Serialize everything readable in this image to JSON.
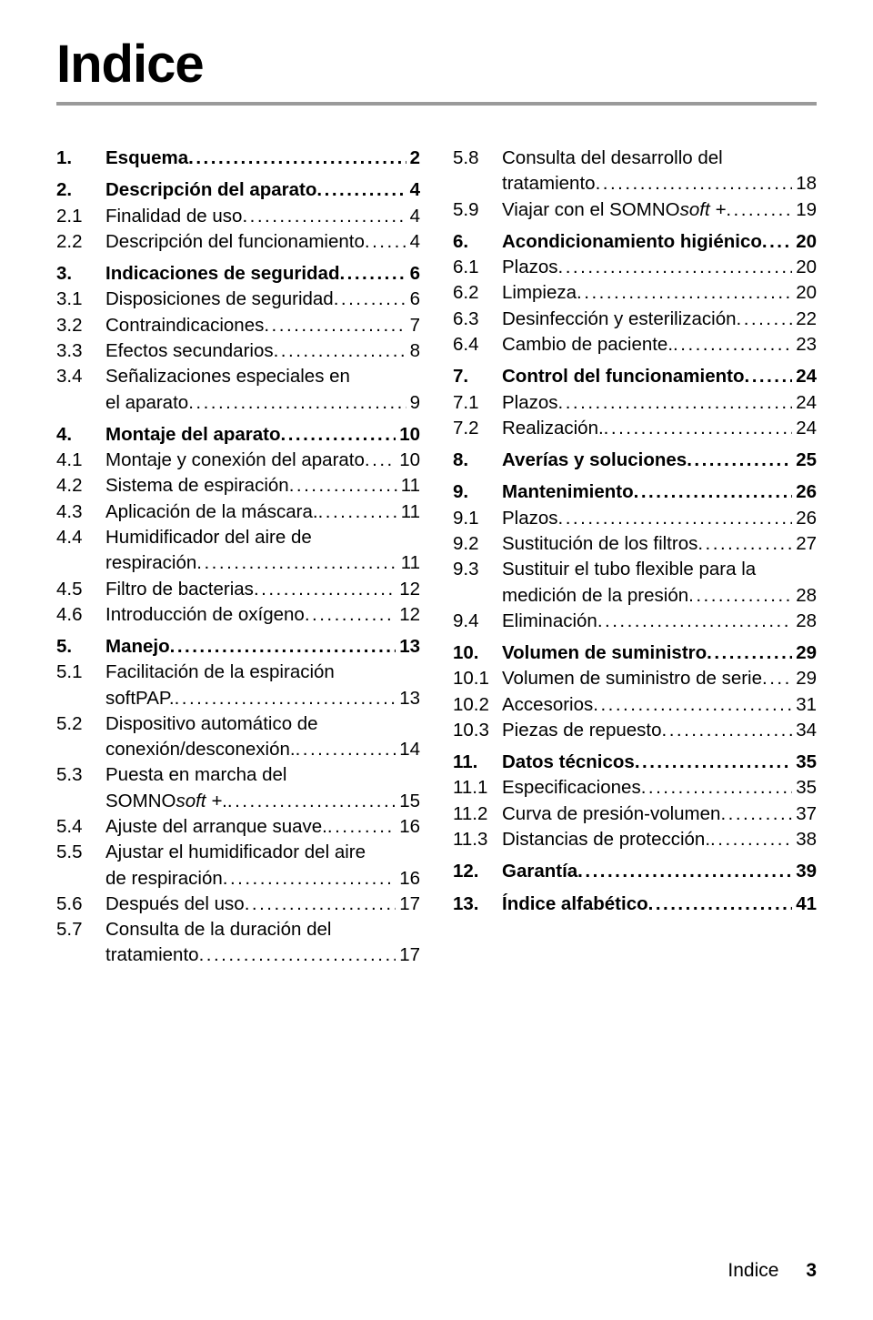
{
  "title": "Indice",
  "footer": {
    "label": "Indice",
    "page": "3"
  },
  "leader_char": ".",
  "leader_repeat": 80,
  "left": [
    {
      "num": "1.",
      "label": "Esquema",
      "page": "2",
      "bold": true,
      "gap": false
    },
    {
      "num": "2.",
      "label": "Descripción del aparato",
      "page": "4",
      "bold": true,
      "gap": true
    },
    {
      "num": "2.1",
      "label": "Finalidad de uso",
      "page": "4",
      "bold": false,
      "gap": false
    },
    {
      "num": "2.2",
      "label": "Descripción del funcionamiento",
      "page": "4",
      "bold": false,
      "gap": false
    },
    {
      "num": "3.",
      "label": "Indicaciones de seguridad",
      "page": "6",
      "bold": true,
      "gap": true
    },
    {
      "num": "3.1",
      "label": "Disposiciones de seguridad",
      "page": "6",
      "bold": false,
      "gap": false
    },
    {
      "num": "3.2",
      "label": "Contraindicaciones",
      "page": "7",
      "bold": false,
      "gap": false
    },
    {
      "num": "3.3",
      "label": "Efectos secundarios",
      "page": "8",
      "bold": false,
      "gap": false
    },
    {
      "num": "3.4",
      "label": "Señalizaciones especiales en el aparato",
      "page": "9",
      "bold": false,
      "gap": false,
      "wrap": "Señalizaciones especiales en",
      "wrap2": "el aparato"
    },
    {
      "num": "4.",
      "label": "Montaje del aparato",
      "page": "10",
      "bold": true,
      "gap": true
    },
    {
      "num": "4.1",
      "label": "Montaje y conexión del aparato",
      "page": "10",
      "bold": false,
      "gap": false
    },
    {
      "num": "4.2",
      "label": "Sistema de espiración",
      "page": "11",
      "bold": false,
      "gap": false
    },
    {
      "num": "4.3",
      "label": "Aplicación de la máscara.",
      "page": "11",
      "bold": false,
      "gap": false
    },
    {
      "num": "4.4",
      "label": "Humidificador del aire de respiración",
      "page": "11",
      "bold": false,
      "gap": false,
      "wrap": "Humidificador del aire de",
      "wrap2": "respiración"
    },
    {
      "num": "4.5",
      "label": "Filtro de bacterias",
      "page": "12",
      "bold": false,
      "gap": false
    },
    {
      "num": "4.6",
      "label": "Introducción de oxígeno",
      "page": "12",
      "bold": false,
      "gap": false
    },
    {
      "num": "5.",
      "label": "Manejo",
      "page": "13",
      "bold": true,
      "gap": true
    },
    {
      "num": "5.1",
      "label": "Facilitación de la espiración softPAP.",
      "page": "13",
      "bold": false,
      "gap": false,
      "wrap": "Facilitación de la espiración",
      "wrap2": "softPAP."
    },
    {
      "num": "5.2",
      "label": "Dispositivo automático de conexión/desconexión.",
      "page": "14",
      "bold": false,
      "gap": false,
      "wrap": "Dispositivo automático de",
      "wrap2": "conexión/desconexión."
    },
    {
      "num": "5.3",
      "label": "Puesta en marcha del SOMNOsoft +.",
      "page": "15",
      "bold": false,
      "gap": false,
      "wrap": "Puesta en marcha del",
      "wrap2": "SOMNO<i>soft +</i>."
    },
    {
      "num": "5.4",
      "label": "Ajuste del arranque suave.",
      "page": "16",
      "bold": false,
      "gap": false
    },
    {
      "num": "5.5",
      "label": "Ajustar el humidificador del aire de respiración",
      "page": "16",
      "bold": false,
      "gap": false,
      "wrap": "Ajustar el humidificador del aire",
      "wrap2": "de respiración"
    },
    {
      "num": "5.6",
      "label": "Después del uso",
      "page": "17",
      "bold": false,
      "gap": false
    },
    {
      "num": "5.7",
      "label": "Consulta de la duración del tratamiento",
      "page": "17",
      "bold": false,
      "gap": false,
      "wrap": "Consulta de la duración del",
      "wrap2": "tratamiento"
    }
  ],
  "right": [
    {
      "num": "5.8",
      "label": "Consulta del desarrollo del tratamiento",
      "page": "18",
      "bold": false,
      "gap": false,
      "wrap": "Consulta del desarrollo del",
      "wrap2": "tratamiento"
    },
    {
      "num": "5.9",
      "label": "Viajar con el SOMNO<i>soft +</i>",
      "page": "19",
      "bold": false,
      "gap": false,
      "html": true
    },
    {
      "num": "6.",
      "label": "Acondicionamiento higiénico",
      "page": "20",
      "bold": true,
      "gap": true
    },
    {
      "num": "6.1",
      "label": "Plazos",
      "page": "20",
      "bold": false,
      "gap": false
    },
    {
      "num": "6.2",
      "label": "Limpieza",
      "page": "20",
      "bold": false,
      "gap": false
    },
    {
      "num": "6.3",
      "label": "Desinfección y esterilización",
      "page": "22",
      "bold": false,
      "gap": false
    },
    {
      "num": "6.4",
      "label": "Cambio de paciente.",
      "page": "23",
      "bold": false,
      "gap": false
    },
    {
      "num": "7.",
      "label": "Control del funcionamiento",
      "page": "24",
      "bold": true,
      "gap": true
    },
    {
      "num": "7.1",
      "label": "Plazos",
      "page": "24",
      "bold": false,
      "gap": false
    },
    {
      "num": "7.2",
      "label": "Realización.",
      "page": "24",
      "bold": false,
      "gap": false
    },
    {
      "num": "8.",
      "label": "Averías y soluciones",
      "page": "25",
      "bold": true,
      "gap": true
    },
    {
      "num": "9.",
      "label": "Mantenimiento",
      "page": "26",
      "bold": true,
      "gap": true
    },
    {
      "num": "9.1",
      "label": "Plazos",
      "page": "26",
      "bold": false,
      "gap": false
    },
    {
      "num": "9.2",
      "label": "Sustitución de los filtros",
      "page": "27",
      "bold": false,
      "gap": false
    },
    {
      "num": "9.3",
      "label": "Sustituir el tubo flexible para la medición de la presión",
      "page": "28",
      "bold": false,
      "gap": false,
      "wrap": "Sustituir el tubo flexible para la",
      "wrap2": "medición de la presión"
    },
    {
      "num": "9.4",
      "label": "Eliminación",
      "page": "28",
      "bold": false,
      "gap": false
    },
    {
      "num": "10.",
      "label": "Volumen de suministro",
      "page": "29",
      "bold": true,
      "gap": true
    },
    {
      "num": "10.1",
      "label": "Volumen de suministro de serie",
      "page": "29",
      "bold": false,
      "gap": false
    },
    {
      "num": "10.2",
      "label": "Accesorios",
      "page": "31",
      "bold": false,
      "gap": false
    },
    {
      "num": "10.3",
      "label": "Piezas de repuesto",
      "page": "34",
      "bold": false,
      "gap": false
    },
    {
      "num": "11.",
      "label": "Datos técnicos",
      "page": "35",
      "bold": true,
      "gap": true
    },
    {
      "num": "11.1",
      "label": "Especificaciones",
      "page": "35",
      "bold": false,
      "gap": false
    },
    {
      "num": "11.2",
      "label": "Curva de presión-volumen",
      "page": "37",
      "bold": false,
      "gap": false
    },
    {
      "num": "11.3",
      "label": "Distancias de protección.",
      "page": "38",
      "bold": false,
      "gap": false
    },
    {
      "num": "12.",
      "label": "Garantía",
      "page": "39",
      "bold": true,
      "gap": true
    },
    {
      "num": "13.",
      "label": "Índice alfabético",
      "page": "41",
      "bold": true,
      "gap": true
    }
  ]
}
